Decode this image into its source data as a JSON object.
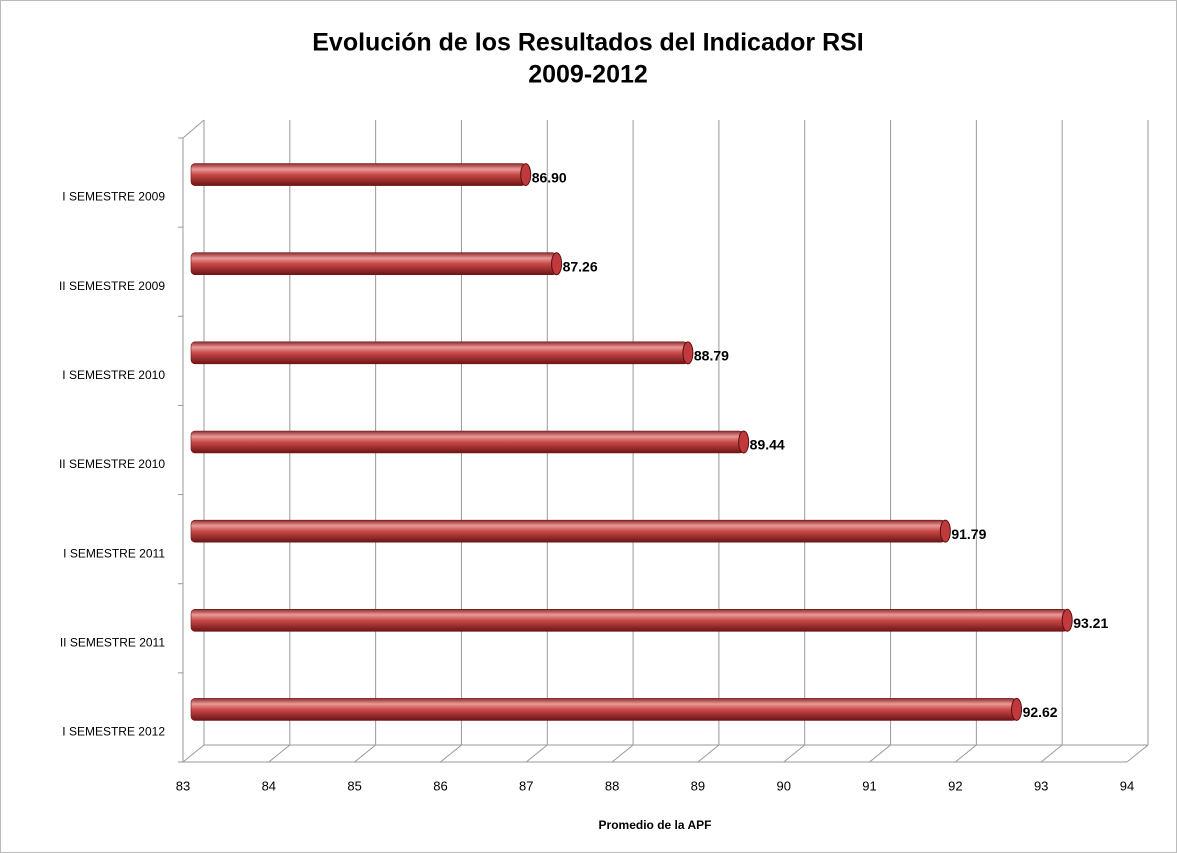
{
  "chart_data": {
    "type": "bar",
    "orientation": "horizontal",
    "title": [
      "Evolución de los Resultados del Indicador RSI",
      "2009-2012"
    ],
    "xlabel": "Promedio de la APF",
    "categories": [
      "I SEMESTRE 2009",
      "II SEMESTRE 2009",
      "I SEMESTRE 2010",
      "II SEMESTRE 2010",
      "I SEMESTRE 2011",
      "II SEMESTRE 2011",
      "I SEMESTRE 2012"
    ],
    "values": [
      86.9,
      87.26,
      88.79,
      89.44,
      91.79,
      93.21,
      92.62
    ],
    "value_labels": [
      "86.90",
      "87.26",
      "88.79",
      "89.44",
      "91.79",
      "93.21",
      "92.62"
    ],
    "color": "#c0393b",
    "xlim": [
      83,
      94
    ],
    "xticks": [
      83,
      84,
      85,
      86,
      87,
      88,
      89,
      90,
      91,
      92,
      93,
      94
    ],
    "grid": true
  }
}
